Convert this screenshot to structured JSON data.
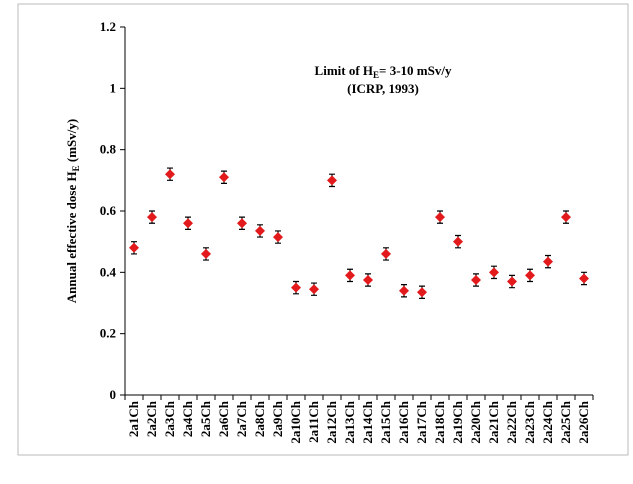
{
  "chart_data": {
    "type": "scatter",
    "y_label": [
      "Annual effective dose  H",
      "E",
      " (mSv/y)"
    ],
    "annotation": [
      [
        "Limit of H",
        "E",
        "= 3-10 mSv/y"
      ],
      [
        "(ICRP, 1993)"
      ]
    ],
    "categories": [
      "2a1Ch",
      "2a2Ch",
      "2a3Ch",
      "2a4Ch",
      "2a5Ch",
      "2a6Ch",
      "2a7Ch",
      "2a8Ch",
      "2a9Ch",
      "2a10Ch",
      "2a11Ch",
      "2a12Ch",
      "2a13Ch",
      "2a14Ch",
      "2a15Ch",
      "2a16Ch",
      "2a17Ch",
      "2a18Ch",
      "2a19Ch",
      "2a20Ch",
      "2a21Ch",
      "2a22Ch",
      "2a23Ch",
      "2a24Ch",
      "2a25Ch",
      "2a26Ch"
    ],
    "values": [
      0.48,
      0.58,
      0.72,
      0.56,
      0.46,
      0.71,
      0.56,
      0.535,
      0.515,
      0.35,
      0.345,
      0.7,
      0.39,
      0.375,
      0.46,
      0.34,
      0.335,
      0.58,
      0.5,
      0.375,
      0.4,
      0.37,
      0.39,
      0.435,
      0.58,
      0.38
    ],
    "errors": [
      0.02,
      0.02,
      0.02,
      0.02,
      0.02,
      0.02,
      0.02,
      0.02,
      0.02,
      0.02,
      0.02,
      0.02,
      0.02,
      0.02,
      0.02,
      0.02,
      0.02,
      0.02,
      0.02,
      0.02,
      0.02,
      0.02,
      0.02,
      0.02,
      0.02,
      0.02
    ],
    "color": "#e31a1c",
    "ylim": [
      0,
      1.2
    ],
    "yticks": [
      0,
      0.2,
      0.4,
      0.6,
      0.8,
      1,
      1.2
    ]
  }
}
